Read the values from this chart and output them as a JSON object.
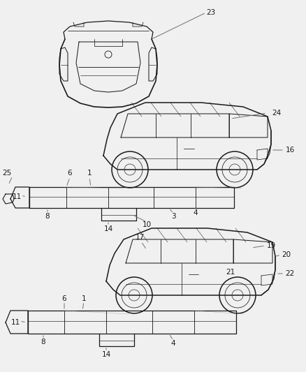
{
  "background_color": "#f0f0f0",
  "line_color": "#1a1a1a",
  "label_color": "#1a1a1a",
  "callout_line_color": "#666666",
  "fig_width": 4.38,
  "fig_height": 5.33,
  "dpi": 100
}
